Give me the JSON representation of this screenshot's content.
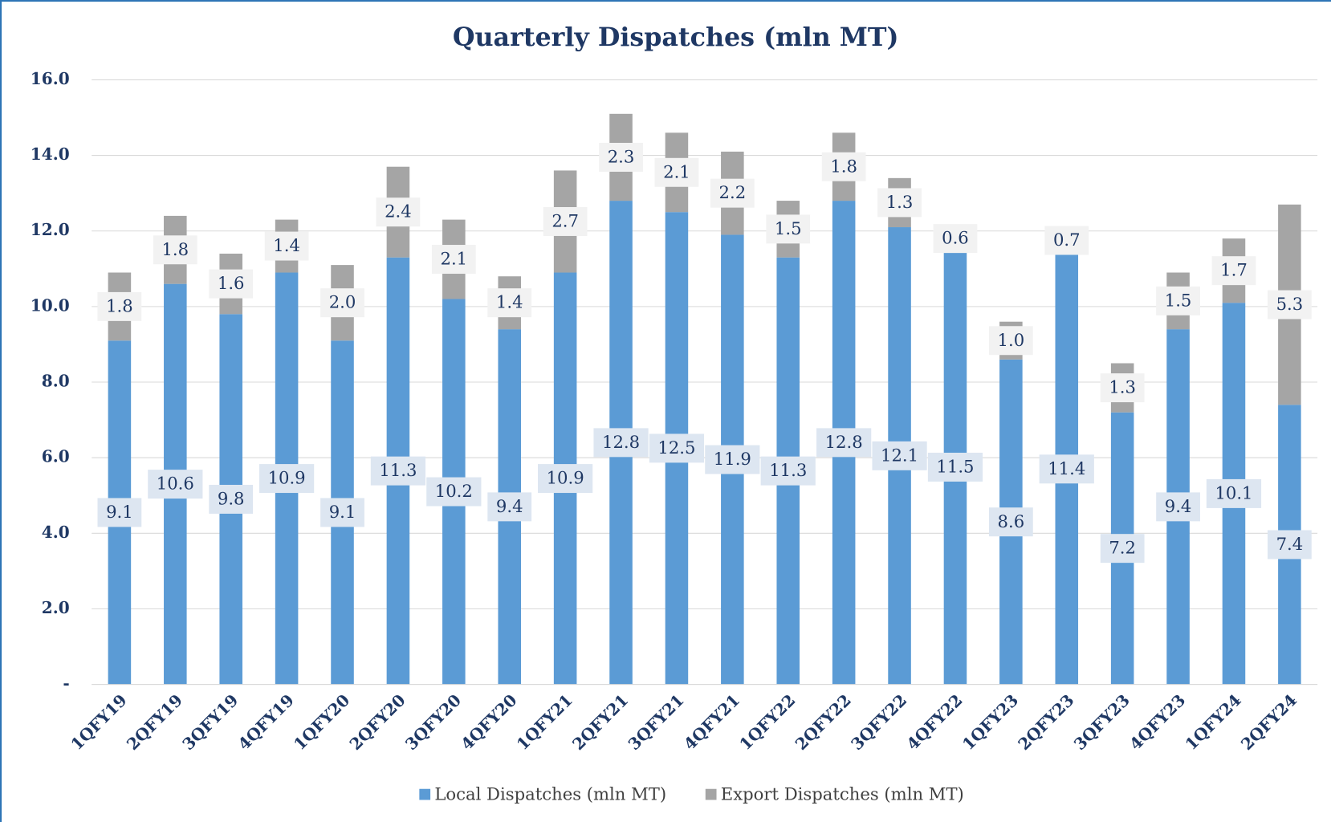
{
  "chart_data": {
    "type": "stacked_bar",
    "title": "Quarterly Dispatches (mln MT)",
    "categories": [
      "1QFY19",
      "2QFY19",
      "3QFY19",
      "4QFY19",
      "1QFY20",
      "2QFY20",
      "3QFY20",
      "4QFY20",
      "1QFY21",
      "2QFY21",
      "3QFY21",
      "4QFY21",
      "1QFY22",
      "2QFY22",
      "3QFY22",
      "4QFY22",
      "1QFY23",
      "2QFY23",
      "3QFY23",
      "4QFY23",
      "1QFY24",
      "2QFY24"
    ],
    "series": [
      {
        "name": "Local Dispatches (mln MT)",
        "color": "#5b9bd5",
        "values": [
          9.1,
          10.6,
          9.8,
          10.9,
          9.1,
          11.3,
          10.2,
          9.4,
          10.9,
          12.8,
          12.5,
          11.9,
          11.3,
          12.8,
          12.1,
          11.5,
          8.6,
          11.4,
          7.2,
          9.4,
          10.1,
          7.4
        ],
        "value_labels": [
          "9.1",
          "10.6",
          "9.8",
          "10.9",
          "9.1",
          "11.3",
          "10.2",
          "9.4",
          "10.9",
          "12.8",
          "12.5",
          "11.9",
          "11.3",
          "12.8",
          "12.1",
          "11.5",
          "8.6",
          "11.4",
          "7.2",
          "9.4",
          "10.1",
          "7.4"
        ]
      },
      {
        "name": "Export Dispatches (mln MT)",
        "color": "#a5a5a5",
        "values": [
          1.8,
          1.8,
          1.6,
          1.4,
          2.0,
          2.4,
          2.1,
          1.4,
          2.7,
          2.3,
          2.1,
          2.2,
          1.5,
          1.8,
          1.3,
          0.6,
          1.0,
          0.7,
          1.3,
          1.5,
          1.7,
          5.3
        ],
        "value_labels": [
          "1.8",
          "1.8",
          "1.6",
          "1.4",
          "2.0",
          "2.4",
          "2.1",
          "1.4",
          "2.7",
          "2.3",
          "2.1",
          "2.2",
          "1.5",
          "1.8",
          "1.3",
          "0.6",
          "1.0",
          "0.7",
          "1.3",
          "1.5",
          "1.7",
          "5.3"
        ]
      }
    ],
    "ylim": [
      0,
      16
    ],
    "yticks": [
      {
        "value": 0,
        "label": "-"
      },
      {
        "value": 2,
        "label": "2.0"
      },
      {
        "value": 4,
        "label": "4.0"
      },
      {
        "value": 6,
        "label": "6.0"
      },
      {
        "value": 8,
        "label": "8.0"
      },
      {
        "value": 10,
        "label": "10.0"
      },
      {
        "value": 12,
        "label": "12.0"
      },
      {
        "value": 14,
        "label": "14.0"
      },
      {
        "value": 16,
        "label": "16.0"
      }
    ],
    "grid": true,
    "legend": "bottom"
  }
}
